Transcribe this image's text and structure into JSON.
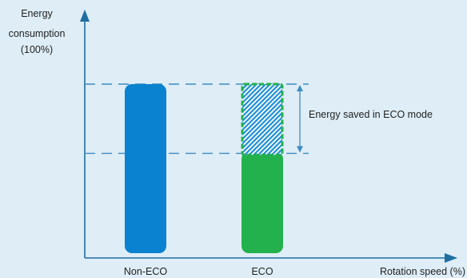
{
  "chart_data": {
    "type": "bar",
    "ylabel": [
      "Energy",
      "consumption",
      "(100%)"
    ],
    "xlabel": "Rotation speed (%)",
    "categories": [
      "Non-ECO",
      "ECO"
    ],
    "ylim": [
      0,
      100
    ],
    "bars": [
      {
        "category": "Non-ECO",
        "value": 100
      },
      {
        "category": "ECO",
        "value": 60,
        "saved": 40
      }
    ],
    "annotation": "Energy saved in ECO mode",
    "grid": false,
    "legend": "none"
  },
  "colors": {
    "background": "#deedf6",
    "non_eco": "#0b82cf",
    "eco": "#22b14c",
    "saved_hatch": "#1e8fd6",
    "axis": "#1e6fa0",
    "guides": "#3f8dbf"
  }
}
